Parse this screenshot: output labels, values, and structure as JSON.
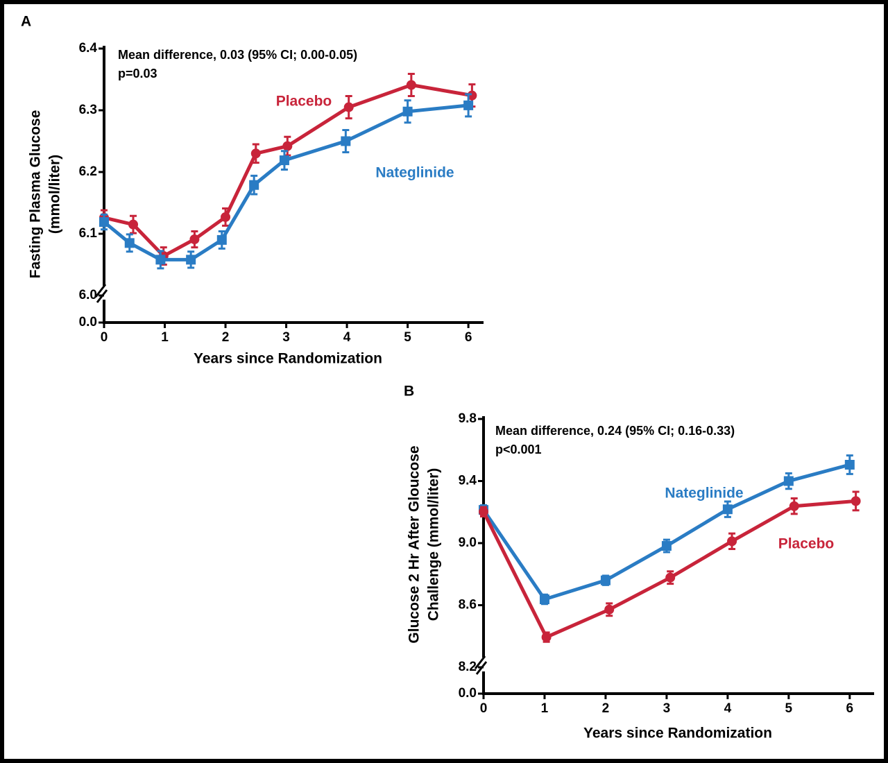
{
  "chart_data": [
    {
      "type": "line",
      "panel": "A",
      "annotations": [
        "Mean difference, 0.03 (95% CI; 0.00-0.05)",
        "p=0.03"
      ],
      "x_label": "Years since Randomization",
      "y_label": [
        "Fasting Plasma Glucose",
        "(mmol/liter)"
      ],
      "xlim": [
        0,
        6.25
      ],
      "xticks": [
        0,
        1,
        2,
        3,
        4,
        5,
        6
      ],
      "ylim": [
        6.0,
        6.4
      ],
      "yticks": [
        {
          "value": 6.0,
          "label": "6.0"
        },
        6.1,
        6.2,
        6.3,
        6.4
      ],
      "y_break_base": {
        "value": 0,
        "label": "0.0"
      },
      "series": [
        {
          "name": "Placebo",
          "color": "#c8243a",
          "marker": "circle",
          "x": [
            0,
            0.48,
            0.98,
            1.49,
            2.0,
            2.5,
            3.02,
            4.03,
            5.06,
            6.06
          ],
          "values": [
            6.126,
            6.115,
            6.064,
            6.091,
            6.127,
            6.23,
            6.242,
            6.305,
            6.341,
            6.324
          ],
          "errors": [
            0.012,
            0.014,
            0.014,
            0.013,
            0.014,
            0.015,
            0.015,
            0.018,
            0.018,
            0.018
          ]
        },
        {
          "name": "Nateglinide",
          "color": "#2a7cc4",
          "marker": "square",
          "x": [
            0,
            0.42,
            0.93,
            1.43,
            1.94,
            2.47,
            2.97,
            3.98,
            5.0,
            6.0
          ],
          "values": [
            6.119,
            6.085,
            6.058,
            6.058,
            6.09,
            6.179,
            6.219,
            6.25,
            6.298,
            6.308
          ],
          "errors": [
            0.012,
            0.014,
            0.014,
            0.013,
            0.014,
            0.015,
            0.015,
            0.018,
            0.018,
            0.018
          ]
        }
      ]
    },
    {
      "type": "line",
      "panel": "B",
      "annotations": [
        "Mean difference, 0.24 (95% CI; 0.16-0.33)",
        "p<0.001"
      ],
      "x_label": "Years since Randomization",
      "y_label": [
        "Glucose 2 Hr After Gloucose",
        "Challenge (mmol/liter)"
      ],
      "xlim": [
        0,
        6.4
      ],
      "xticks": [
        0,
        1,
        2,
        3,
        4,
        5,
        6
      ],
      "ylim": [
        8.2,
        9.8
      ],
      "yticks": [
        8.2,
        8.6,
        {
          "value": 9.0,
          "label": "9.0"
        },
        9.4,
        9.8
      ],
      "y_break_base": {
        "value": 0,
        "label": "0.0"
      },
      "series": [
        {
          "name": "Nateglinide",
          "color": "#2a7cc4",
          "marker": "square",
          "x": [
            0,
            1,
            2,
            3,
            4,
            5,
            6
          ],
          "values": [
            9.214,
            8.638,
            8.76,
            8.982,
            9.218,
            9.4,
            9.505
          ],
          "errors": [
            0.03,
            0.03,
            0.03,
            0.04,
            0.05,
            0.05,
            0.06
          ]
        },
        {
          "name": "Placebo",
          "color": "#c8243a",
          "marker": "circle",
          "x": [
            0,
            1.03,
            2.06,
            3.06,
            4.07,
            5.09,
            6.1
          ],
          "values": [
            9.202,
            8.394,
            8.572,
            8.778,
            9.012,
            9.238,
            9.271
          ],
          "errors": [
            0.03,
            0.03,
            0.04,
            0.04,
            0.05,
            0.05,
            0.06
          ]
        }
      ]
    }
  ]
}
